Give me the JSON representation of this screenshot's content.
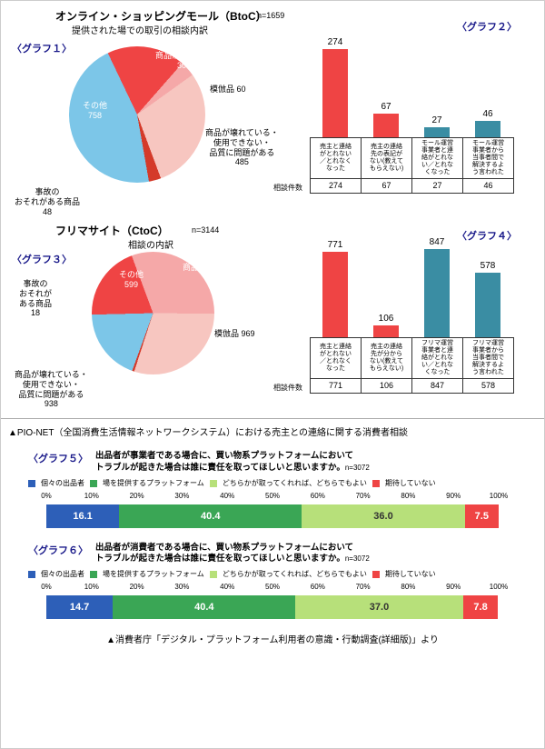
{
  "section1": {
    "title": "オンライン・ショッピングモール（BtoC）",
    "n_label": "n=1659",
    "subtitle": "提供された場での取引の相談内訳",
    "g1": "〈グラフ１〉",
    "g2": "〈グラフ２〉",
    "pie": {
      "diameter": 150,
      "slices": [
        {
          "label": "その他\n758",
          "value": 758,
          "color": "#7cc6e8"
        },
        {
          "label": "商品が届かない\n308",
          "value": 308,
          "color": "#ef4444"
        },
        {
          "label": "模倣品 60",
          "value": 60,
          "color": "#f5a8a8"
        },
        {
          "label": "商品が壊れている・\n使用できない・\n品質に問題がある\n485",
          "value": 485,
          "color": "#f7c6c0"
        },
        {
          "label": "事故の\nおそれがある商品\n48",
          "value": 48,
          "color": "#d43a2a"
        }
      ]
    },
    "bars": {
      "max": 280,
      "height": 110,
      "cols": [
        {
          "val": 274,
          "color": "#ef4444",
          "cat": "売主と連絡\nがとれない\n／とれなく\nなった"
        },
        {
          "val": 67,
          "color": "#ef4444",
          "cat": "売主の連絡\n先の表記が\nない(教えて\nもらえない)"
        },
        {
          "val": 27,
          "color": "#3a8da3",
          "cat": "モール運営\n事業者と連\n絡がとれな\nい／とれな\nくなった"
        },
        {
          "val": 46,
          "color": "#3a8da3",
          "cat": "モール運営\n事業者から\n当事者間で\n解決するよ\nう言われた"
        }
      ],
      "row_label": "相談件数"
    }
  },
  "section2": {
    "title": "フリマサイト（CtoC）",
    "n_label": "n=3144",
    "subtitle": "相談の内訳",
    "g3": "〈グラフ３〉",
    "g4": "〈グラフ４〉",
    "pie": {
      "diameter": 135,
      "slices": [
        {
          "label": "その他\n599",
          "value": 599,
          "color": "#7cc6e8"
        },
        {
          "label": "商品が届かない\n620",
          "value": 620,
          "color": "#ef4444"
        },
        {
          "label": "模倣品 969",
          "value": 969,
          "color": "#f5a8a8"
        },
        {
          "label": "商品が壊れている・\n使用できない・\n品質に問題がある\n938",
          "value": 938,
          "color": "#f7c6c0"
        },
        {
          "label": "事故の\nおそれが\nある商品\n18",
          "value": 18,
          "color": "#d43a2a"
        }
      ]
    },
    "bars": {
      "max": 900,
      "height": 110,
      "cols": [
        {
          "val": 771,
          "color": "#ef4444",
          "cat": "売主と連絡\nがとれない\n／とれなく\nなった"
        },
        {
          "val": 106,
          "color": "#ef4444",
          "cat": "売主の連絡\n先が分から\nない(教えて\nもらえない)"
        },
        {
          "val": 847,
          "color": "#3a8da3",
          "cat": "フリマ運営\n事業者と連\n絡がとれな\nい／とれな\nくなった"
        },
        {
          "val": 578,
          "color": "#3a8da3",
          "cat": "フリマ運営\n事業者から\n当事者間で\n解決するよ\nう言われた"
        }
      ],
      "row_label": "相談件数"
    }
  },
  "caption1": "▲PIO-NET（全国消費生活情報ネットワークシステム）における売主との連絡に関する消費者相談",
  "stack5": {
    "g": "〈グラフ５〉",
    "title": "出品者が事業者である場合に、買い物系プラットフォームにおいて\nトラブルが起きた場合は誰に責任を取ってほしいと思いますか。",
    "n": "n=3072",
    "legend": [
      {
        "label": "個々の出品者",
        "color": "#2d5fb8"
      },
      {
        "label": "場を提供するプラットフォーム",
        "color": "#3aa655"
      },
      {
        "label": "どちらかが取ってくれれば、どちらでもよい",
        "color": "#b7e07a"
      },
      {
        "label": "期待していない",
        "color": "#ef4444"
      }
    ],
    "ticks": [
      "0%",
      "10%",
      "20%",
      "30%",
      "40%",
      "50%",
      "60%",
      "70%",
      "80%",
      "90%",
      "100%"
    ],
    "segments": [
      {
        "val": "16.1",
        "pct": 16.1,
        "color": "#2d5fb8"
      },
      {
        "val": "40.4",
        "pct": 40.4,
        "color": "#3aa655"
      },
      {
        "val": "36.0",
        "pct": 36.0,
        "color": "#b7e07a",
        "textcolor": "#333"
      },
      {
        "val": "7.5",
        "pct": 7.5,
        "color": "#ef4444"
      }
    ]
  },
  "stack6": {
    "g": "〈グラフ６〉",
    "title": "出品者が消費者である場合に、買い物系プラットフォームにおいて\nトラブルが起きた場合は誰に責任を取ってほしいと思いますか。",
    "n": "n=3072",
    "legend": [
      {
        "label": "個々の出品者",
        "color": "#2d5fb8"
      },
      {
        "label": "場を提供するプラットフォーム",
        "color": "#3aa655"
      },
      {
        "label": "どちらかが取ってくれれば、どちらでもよい",
        "color": "#b7e07a"
      },
      {
        "label": "期待していない",
        "color": "#ef4444"
      }
    ],
    "ticks": [
      "0%",
      "10%",
      "20%",
      "30%",
      "40%",
      "50%",
      "60%",
      "70%",
      "80%",
      "90%",
      "100%"
    ],
    "segments": [
      {
        "val": "14.7",
        "pct": 14.7,
        "color": "#2d5fb8"
      },
      {
        "val": "40.4",
        "pct": 40.4,
        "color": "#3aa655"
      },
      {
        "val": "37.0",
        "pct": 37.0,
        "color": "#b7e07a",
        "textcolor": "#333"
      },
      {
        "val": "7.8",
        "pct": 7.8,
        "color": "#ef4444"
      }
    ]
  },
  "caption2": "▲消費者庁「デジタル・プラットフォーム利用者の意識・行動調査(詳細版)」より"
}
